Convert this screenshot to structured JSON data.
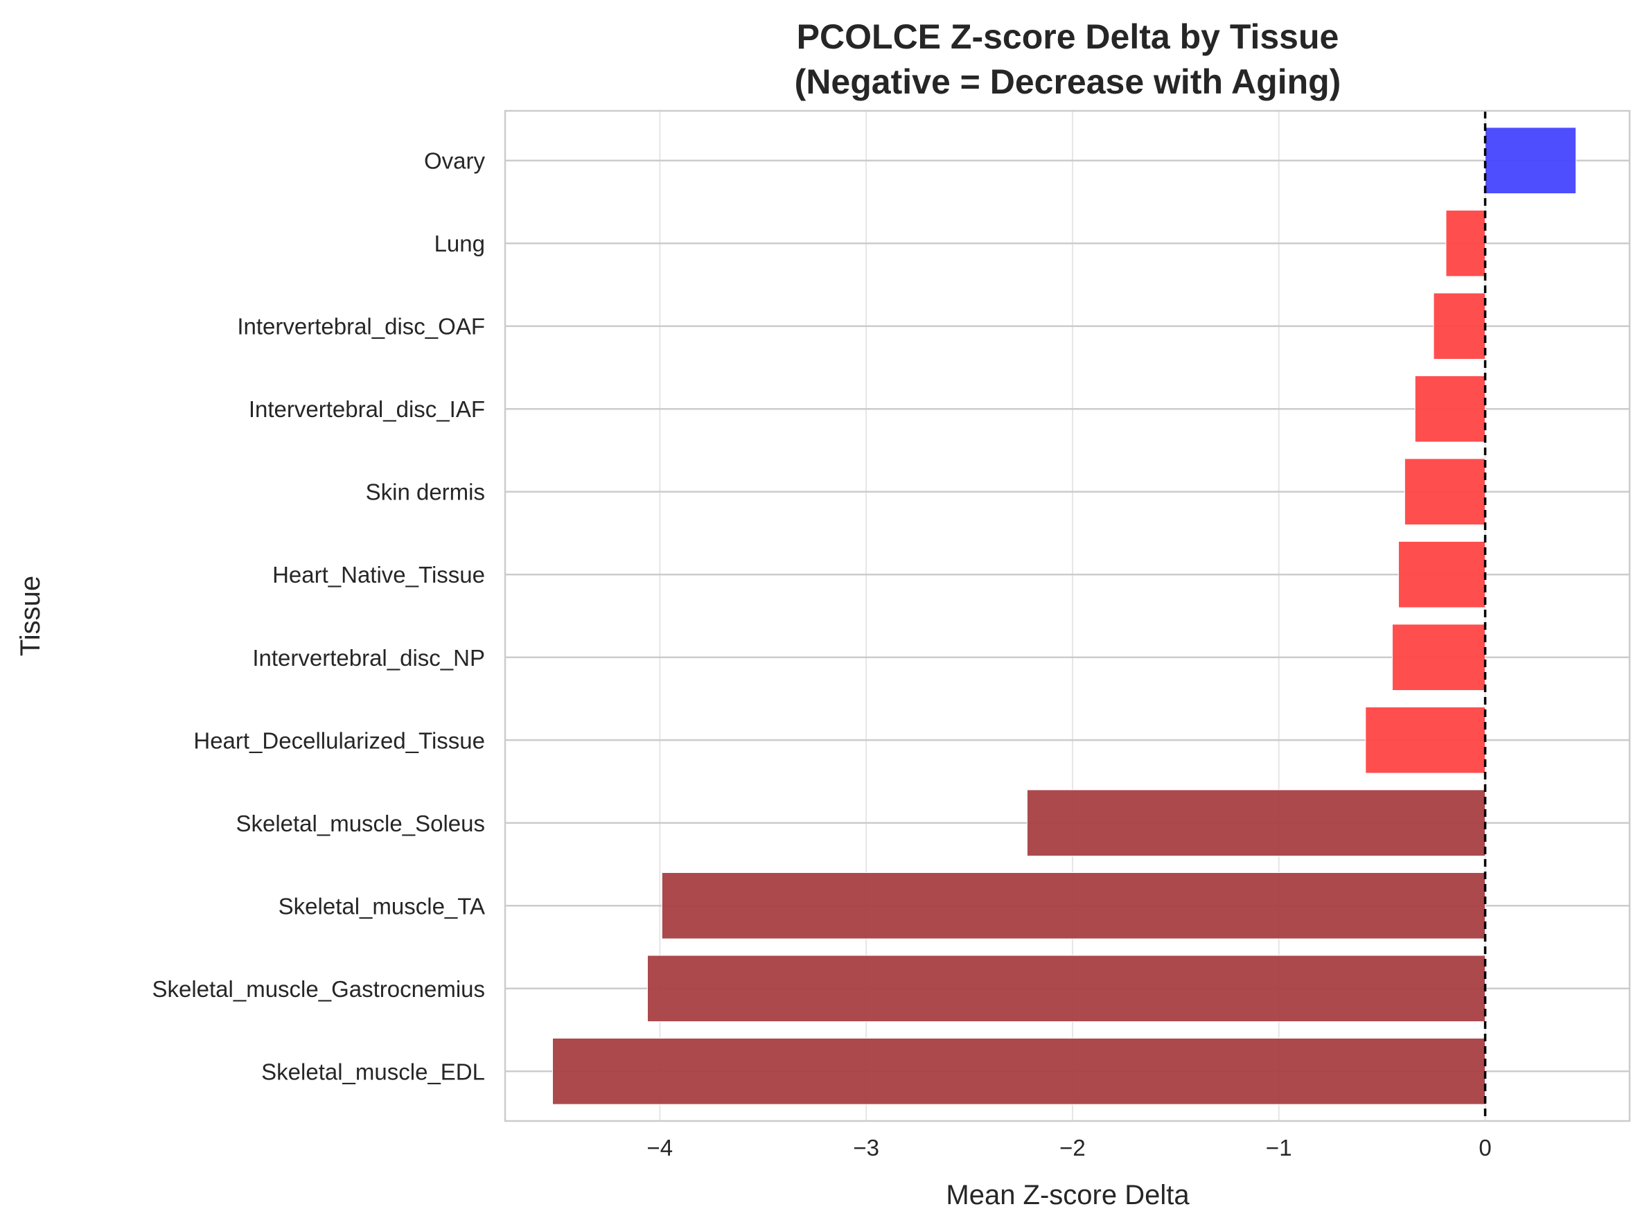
{
  "chart_data": {
    "type": "bar",
    "orientation": "horizontal",
    "title_lines": [
      "PCOLCE Z-score Delta by Tissue",
      "(Negative = Decrease with Aging)"
    ],
    "xlabel": "Mean Z-score Delta",
    "ylabel": "Tissue",
    "xlim": [
      -4.75,
      0.7
    ],
    "xticks": [
      -4,
      -3,
      -2,
      -1,
      0
    ],
    "xtick_labels": [
      "−4",
      "−3",
      "−2",
      "−1",
      "0"
    ],
    "grid": true,
    "reference_line": {
      "x": 0,
      "style": "dashed",
      "color": "#000000"
    },
    "categories": [
      "Ovary",
      "Lung",
      "Intervertebral_disc_OAF",
      "Intervertebral_disc_IAF",
      "Skin dermis",
      "Heart_Native_Tissue",
      "Intervertebral_disc_NP",
      "Heart_Decellularized_Tissue",
      "Skeletal_muscle_Soleus",
      "Skeletal_muscle_TA",
      "Skeletal_muscle_Gastrocnemius",
      "Skeletal_muscle_EDL"
    ],
    "values": [
      0.44,
      -0.19,
      -0.25,
      -0.34,
      -0.39,
      -0.42,
      -0.45,
      -0.58,
      -2.22,
      -3.99,
      -4.06,
      -4.52
    ],
    "bar_colors": [
      "#4444ff",
      "#ff4444",
      "#ff4444",
      "#ff4444",
      "#ff4444",
      "#ff4444",
      "#ff4444",
      "#ff4444",
      "#a83f42",
      "#a83f42",
      "#a83f42",
      "#a83f42"
    ]
  }
}
